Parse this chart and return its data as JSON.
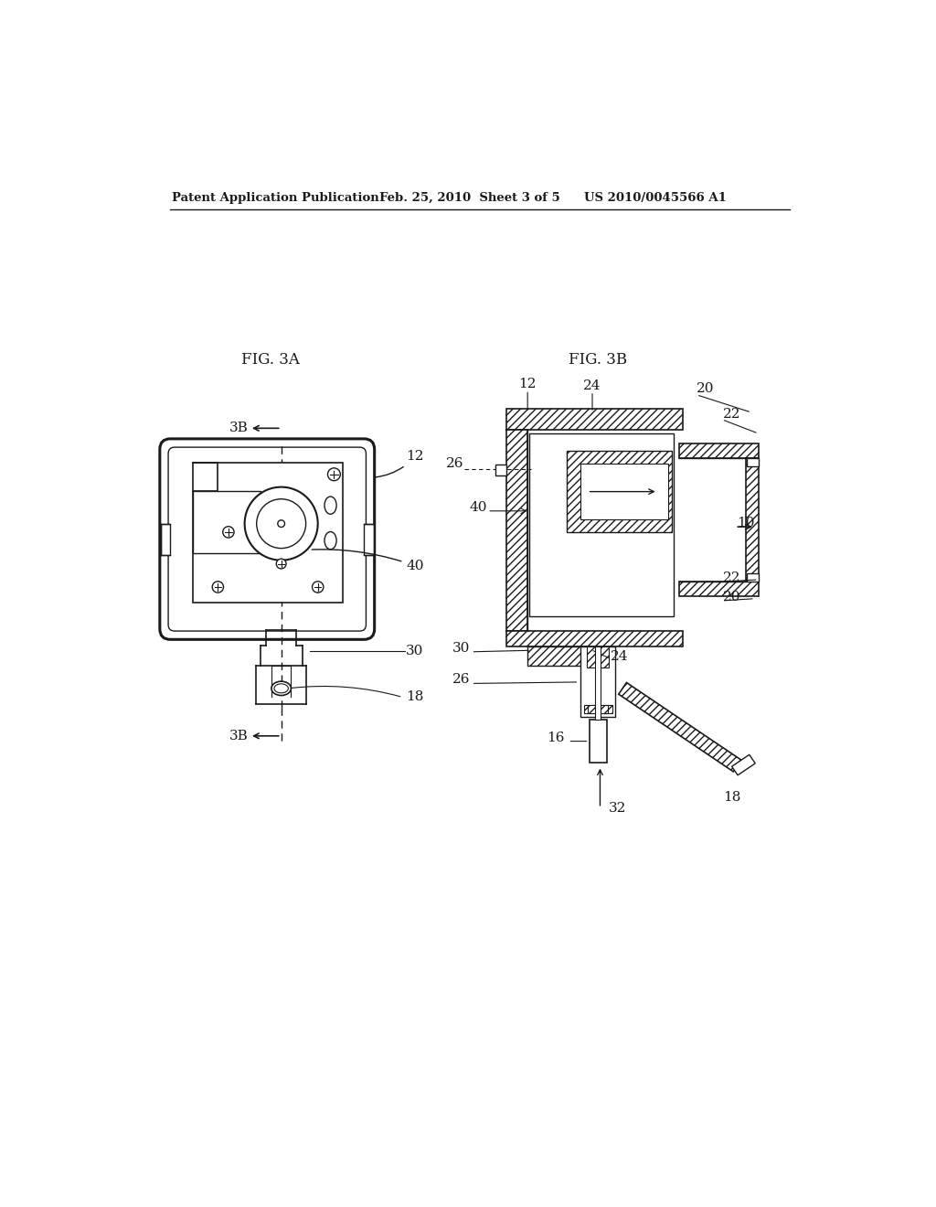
{
  "background_color": "#ffffff",
  "header_left": "Patent Application Publication",
  "header_center": "Feb. 25, 2010  Sheet 3 of 5",
  "header_right": "US 2010/0045566 A1",
  "fig3a_label": "FIG. 3A",
  "fig3b_label": "FIG. 3B",
  "text_color": "#1a1a1a",
  "line_color": "#1a1a1a"
}
